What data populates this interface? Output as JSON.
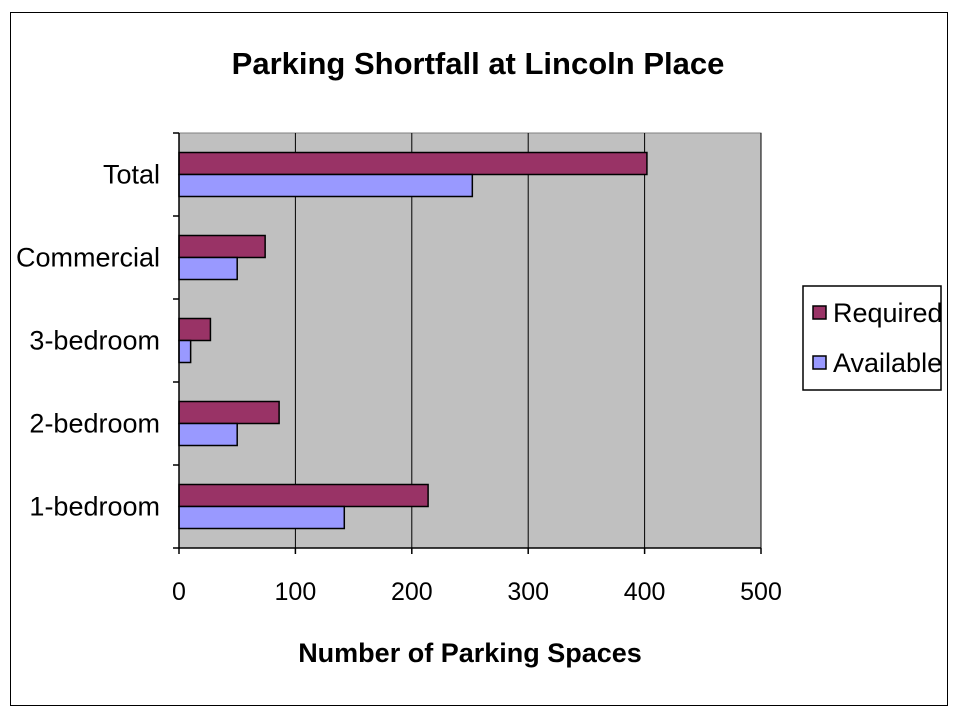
{
  "chart_data": {
    "type": "bar",
    "orientation": "horizontal",
    "title": "Parking Shortfall at Lincoln Place",
    "xlabel": "Number of Parking Spaces",
    "ylabel": "",
    "categories": [
      "Total",
      "Commercial",
      "3-bedroom",
      "2-bedroom",
      "1-bedroom"
    ],
    "series": [
      {
        "name": "Required",
        "color": "#993366",
        "values": [
          402,
          74,
          27,
          86,
          214
        ]
      },
      {
        "name": "Available",
        "color": "#9999FF",
        "values": [
          252,
          50,
          10,
          50,
          142
        ]
      }
    ],
    "xlim": [
      0,
      500
    ],
    "xticks": [
      0,
      100,
      200,
      300,
      400,
      500
    ],
    "grid": true,
    "plot_background": "#C0C0C0",
    "legend_position": "right"
  }
}
